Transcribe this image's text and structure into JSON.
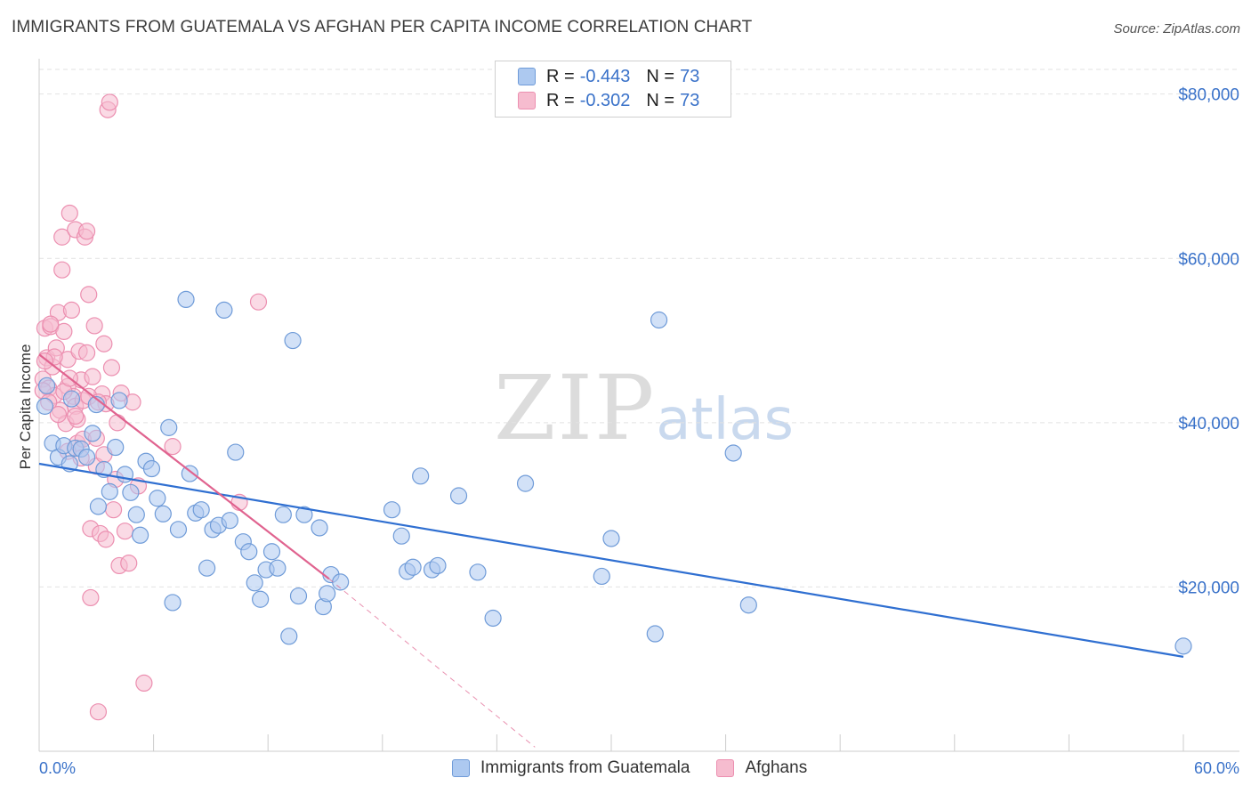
{
  "title": "IMMIGRANTS FROM GUATEMALA VS AFGHAN PER CAPITA INCOME CORRELATION CHART",
  "source": "Source: ZipAtlas.com",
  "watermark": {
    "zip": "ZIP",
    "atlas": "atlas"
  },
  "legend": {
    "r_label": "R =",
    "n_label": "N =",
    "series": [
      {
        "r": "-0.443",
        "n": "73"
      },
      {
        "r": "-0.302",
        "n": "73"
      }
    ]
  },
  "colors": {
    "blue_fill": "#adc9f0",
    "blue_stroke": "#6f9bd8",
    "blue_line": "#2f6fd1",
    "pink_fill": "#f6bccf",
    "pink_stroke": "#ec8fb0",
    "pink_line": "#e0638f",
    "axis_text": "#3a72c9",
    "grid": "#e2e2e2"
  },
  "chart_data": {
    "type": "scatter",
    "title": "IMMIGRANTS FROM GUATEMALA VS AFGHAN PER CAPITA INCOME CORRELATION CHART",
    "xlabel": "",
    "ylabel": "Per Capita Income",
    "xlim": [
      0,
      60
    ],
    "ylim": [
      0,
      83000
    ],
    "x_tick_labels": [
      "0.0%",
      "60.0%"
    ],
    "y_ticks": [
      20000,
      40000,
      60000,
      80000
    ],
    "y_tick_labels": [
      "$20,000",
      "$40,000",
      "$60,000",
      "$80,000"
    ],
    "grid": true,
    "legend_position": "top-center",
    "series": [
      {
        "name": "Immigrants from Guatemala",
        "color": "#6f9bd8",
        "points": [
          [
            0.3,
            42000
          ],
          [
            0.7,
            37500
          ],
          [
            1.0,
            35800
          ],
          [
            1.3,
            37200
          ],
          [
            1.6,
            35000
          ],
          [
            1.9,
            36900
          ],
          [
            2.2,
            36800
          ],
          [
            2.5,
            35800
          ],
          [
            2.8,
            38700
          ],
          [
            3.0,
            42200
          ],
          [
            3.1,
            29800
          ],
          [
            3.4,
            34300
          ],
          [
            3.7,
            31600
          ],
          [
            4.0,
            37000
          ],
          [
            4.2,
            42700
          ],
          [
            4.5,
            33700
          ],
          [
            4.8,
            31500
          ],
          [
            5.1,
            28800
          ],
          [
            5.3,
            26300
          ],
          [
            5.6,
            35300
          ],
          [
            5.9,
            34400
          ],
          [
            6.2,
            30800
          ],
          [
            6.5,
            28900
          ],
          [
            6.8,
            39400
          ],
          [
            7.0,
            18100
          ],
          [
            7.3,
            27000
          ],
          [
            7.7,
            55000
          ],
          [
            7.9,
            33800
          ],
          [
            8.2,
            29000
          ],
          [
            8.5,
            29400
          ],
          [
            8.8,
            22300
          ],
          [
            9.1,
            27000
          ],
          [
            9.4,
            27500
          ],
          [
            9.7,
            53700
          ],
          [
            10.0,
            28100
          ],
          [
            10.3,
            36400
          ],
          [
            10.7,
            25500
          ],
          [
            11.0,
            24300
          ],
          [
            11.3,
            20500
          ],
          [
            11.6,
            18500
          ],
          [
            11.9,
            22100
          ],
          [
            12.2,
            24300
          ],
          [
            12.5,
            22300
          ],
          [
            12.8,
            28800
          ],
          [
            13.1,
            14000
          ],
          [
            13.3,
            50000
          ],
          [
            13.6,
            18900
          ],
          [
            13.9,
            28800
          ],
          [
            14.7,
            27200
          ],
          [
            14.9,
            17600
          ],
          [
            15.1,
            19200
          ],
          [
            15.3,
            21500
          ],
          [
            15.8,
            20600
          ],
          [
            18.5,
            29400
          ],
          [
            19.0,
            26200
          ],
          [
            19.3,
            21900
          ],
          [
            19.6,
            22400
          ],
          [
            20.0,
            33500
          ],
          [
            20.6,
            22100
          ],
          [
            20.9,
            22600
          ],
          [
            22.0,
            31100
          ],
          [
            23.0,
            21800
          ],
          [
            23.8,
            16200
          ],
          [
            25.5,
            32600
          ],
          [
            29.5,
            21300
          ],
          [
            30.0,
            25900
          ],
          [
            32.3,
            14300
          ],
          [
            32.5,
            52500
          ],
          [
            36.4,
            36300
          ],
          [
            37.2,
            17800
          ],
          [
            60.0,
            12800
          ],
          [
            0.4,
            44500
          ],
          [
            1.7,
            42900
          ]
        ]
      },
      {
        "name": "Afghans",
        "color": "#ec8fb0",
        "points": [
          [
            0.2,
            45300
          ],
          [
            0.3,
            51500
          ],
          [
            0.4,
            47900
          ],
          [
            0.5,
            44200
          ],
          [
            0.6,
            51700
          ],
          [
            0.7,
            46800
          ],
          [
            0.8,
            43300
          ],
          [
            0.9,
            49100
          ],
          [
            1.0,
            53400
          ],
          [
            1.1,
            41500
          ],
          [
            1.2,
            58600
          ],
          [
            1.2,
            62600
          ],
          [
            1.3,
            51100
          ],
          [
            1.4,
            39900
          ],
          [
            1.5,
            44400
          ],
          [
            1.5,
            47700
          ],
          [
            1.6,
            65500
          ],
          [
            1.7,
            53700
          ],
          [
            1.8,
            43200
          ],
          [
            1.9,
            63500
          ],
          [
            1.9,
            42000
          ],
          [
            2.0,
            37500
          ],
          [
            2.0,
            40400
          ],
          [
            2.1,
            48700
          ],
          [
            2.2,
            45200
          ],
          [
            2.3,
            38000
          ],
          [
            2.3,
            42700
          ],
          [
            2.4,
            62600
          ],
          [
            2.5,
            63300
          ],
          [
            2.5,
            48500
          ],
          [
            2.6,
            55600
          ],
          [
            2.7,
            27100
          ],
          [
            2.7,
            18700
          ],
          [
            2.8,
            45600
          ],
          [
            2.9,
            51800
          ],
          [
            3.0,
            38100
          ],
          [
            3.0,
            34700
          ],
          [
            3.1,
            4800
          ],
          [
            3.2,
            26500
          ],
          [
            3.3,
            43500
          ],
          [
            3.4,
            49600
          ],
          [
            3.5,
            42300
          ],
          [
            3.5,
            25800
          ],
          [
            3.6,
            78100
          ],
          [
            3.7,
            79000
          ],
          [
            3.8,
            46700
          ],
          [
            3.9,
            29400
          ],
          [
            4.0,
            33100
          ],
          [
            4.1,
            40000
          ],
          [
            4.2,
            22600
          ],
          [
            4.3,
            43600
          ],
          [
            4.5,
            26800
          ],
          [
            4.7,
            22900
          ],
          [
            4.9,
            42500
          ],
          [
            5.2,
            32300
          ],
          [
            5.5,
            8300
          ],
          [
            7.0,
            37100
          ],
          [
            10.5,
            30300
          ],
          [
            11.5,
            54700
          ],
          [
            0.2,
            43900
          ],
          [
            0.5,
            42500
          ],
          [
            0.8,
            48000
          ],
          [
            1.0,
            41000
          ],
          [
            1.3,
            43800
          ],
          [
            1.6,
            45400
          ],
          [
            1.9,
            40800
          ],
          [
            2.2,
            35700
          ],
          [
            2.6,
            43200
          ],
          [
            3.1,
            42500
          ],
          [
            3.4,
            36100
          ],
          [
            0.3,
            47500
          ],
          [
            0.6,
            52000
          ],
          [
            1.5,
            36500
          ]
        ]
      }
    ],
    "trend_lines": [
      {
        "series": "Immigrants from Guatemala",
        "from": [
          0,
          35000
        ],
        "to": [
          60,
          11500
        ]
      },
      {
        "series": "Afghans",
        "from": [
          0,
          48300
        ],
        "to": [
          15.2,
          21000
        ],
        "dashed_extension_to": [
          26,
          500
        ]
      }
    ]
  },
  "bottom_legend": [
    "Immigrants from Guatemala",
    "Afghans"
  ]
}
